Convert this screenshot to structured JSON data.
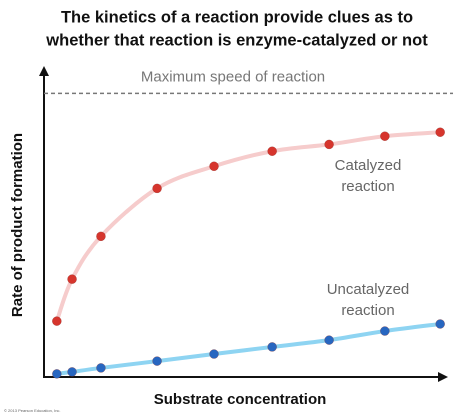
{
  "chart_data": {
    "type": "scatter",
    "title": [
      "The kinetics of a reaction provide clues as to",
      "whether that reaction is enzyme-catalyzed or not"
    ],
    "x_label": "Substrate concentration",
    "y_label": "Rate of product formation",
    "reference_line": {
      "label": "Maximum speed of reaction",
      "value": 100
    },
    "credit": "© 2013 Pearson Education, Inc.",
    "xlim": [
      0,
      10
    ],
    "ylim": [
      0,
      110
    ],
    "x": [
      0.32,
      0.7,
      1.42,
      2.82,
      4.24,
      5.69,
      7.11,
      8.5,
      9.88
    ],
    "series": [
      {
        "name_lines": [
          "Catalyzed",
          "reaction"
        ],
        "color": "#d6352d",
        "line_color": "#f6cccc",
        "values": [
          19.7,
          34.5,
          49.6,
          66.5,
          74.3,
          79.6,
          82.0,
          84.9,
          86.3
        ]
      },
      {
        "name_lines": [
          "Uncatalyzed",
          "reaction"
        ],
        "color": "#2766c0",
        "line_color": "#8ed4f2",
        "values": [
          1.1,
          1.8,
          3.2,
          5.6,
          8.1,
          10.6,
          13.0,
          16.2,
          18.7
        ]
      }
    ]
  }
}
